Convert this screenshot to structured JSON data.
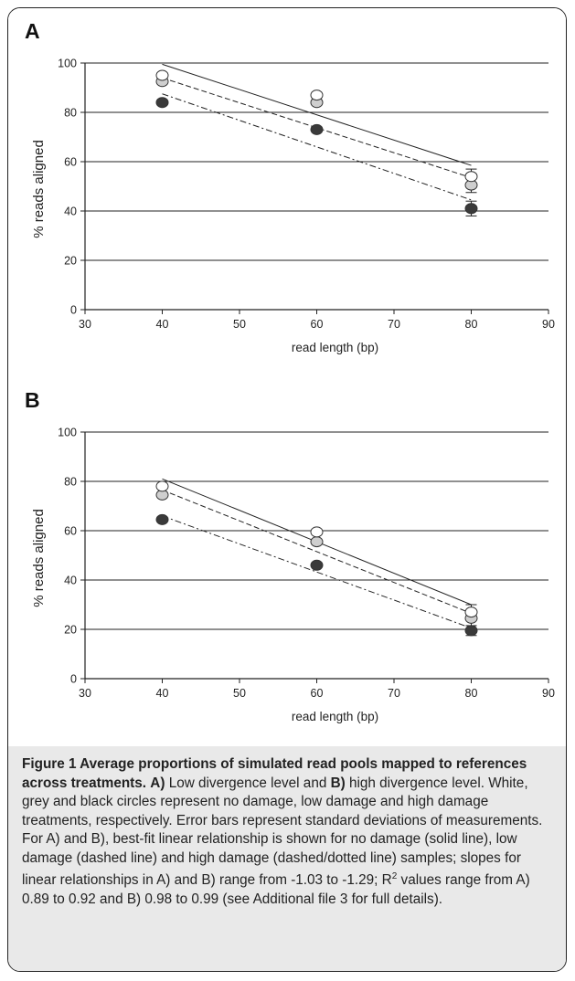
{
  "chart_data": [
    {
      "panel_label": "A",
      "type": "scatter",
      "xlabel": "read length (bp)",
      "ylabel": "% reads aligned",
      "xlim": [
        30,
        90
      ],
      "ylim": [
        0,
        100
      ],
      "x_ticks": [
        "30",
        "40",
        "50",
        "60",
        "70",
        "80",
        "90"
      ],
      "y_ticks": [
        "0",
        "20",
        "40",
        "60",
        "80",
        "100"
      ],
      "grid": "horizontal",
      "x": [
        40,
        60,
        80
      ],
      "series": [
        {
          "fill": "#ffffff",
          "values": [
            95,
            87,
            54
          ],
          "errors": [
            1,
            1,
            3
          ],
          "fit": [
            99.5,
            58.5
          ],
          "dash": "solid"
        },
        {
          "fill": "#cfcfcf",
          "values": [
            92.5,
            84,
            50.5
          ],
          "errors": [
            1,
            1,
            3
          ],
          "fit": [
            94,
            53.5
          ],
          "dash": "dashed"
        },
        {
          "fill": "#3a3a3a",
          "values": [
            84,
            73,
            41
          ],
          "errors": [
            1,
            1,
            3
          ],
          "fit": [
            87.5,
            44.5
          ],
          "dash": "dashdot"
        }
      ]
    },
    {
      "panel_label": "B",
      "type": "scatter",
      "xlabel": "read length (bp)",
      "ylabel": "% reads aligned",
      "xlim": [
        30,
        90
      ],
      "ylim": [
        0,
        100
      ],
      "x_ticks": [
        "30",
        "40",
        "50",
        "60",
        "70",
        "80",
        "90"
      ],
      "y_ticks": [
        "0",
        "20",
        "40",
        "60",
        "80",
        "100"
      ],
      "grid": "horizontal",
      "x": [
        40,
        60,
        80
      ],
      "series": [
        {
          "fill": "#ffffff",
          "values": [
            78,
            59.5,
            27
          ],
          "errors": [
            1,
            1,
            3
          ],
          "fit": [
            81,
            30
          ],
          "dash": "solid"
        },
        {
          "fill": "#cfcfcf",
          "values": [
            74.5,
            55.5,
            24.5
          ],
          "errors": [
            1,
            1,
            3
          ],
          "fit": [
            76.5,
            26.5
          ],
          "dash": "dashed"
        },
        {
          "fill": "#3a3a3a",
          "values": [
            64.5,
            46,
            19.5
          ],
          "errors": [
            1,
            1,
            2
          ],
          "fit": [
            66,
            20.5
          ],
          "dash": "dashdot"
        }
      ]
    }
  ],
  "caption": {
    "heading": "Figure 1 Average proportions of simulated read pools mapped to references across treatments.",
    "a_ref": "A)",
    "a_text": " Low divergence level and ",
    "b_ref": "B)",
    "b_text": " high divergence level. White, grey and black circles represent no damage, low damage and high damage treatments, respectively. Error bars represent standard deviations of measurements. For A) and B), best-fit linear relationship is shown for no damage (solid line), low damage (dashed line) and high damage (dashed/dotted line) samples; slopes for linear relationships in A) and B) range from -1.03 to -1.29; R",
    "r_sup": "2",
    "end_text": " values range from A) 0.89 to 0.92 and B) 0.98 to 0.99 (see Additional file 3 for full details)."
  }
}
